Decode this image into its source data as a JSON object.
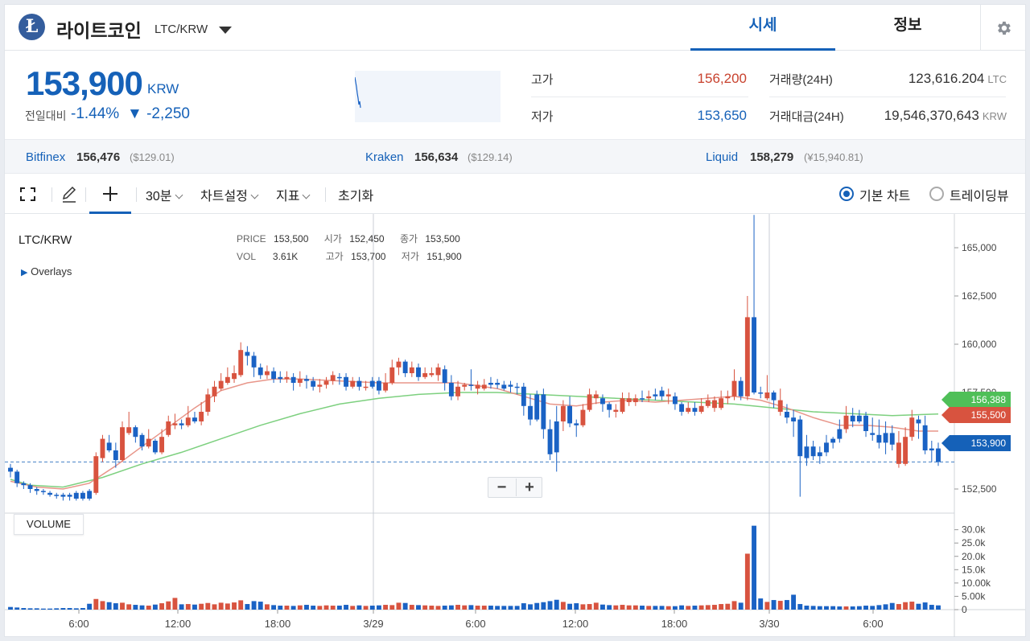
{
  "header": {
    "coin_logo_glyph": "Ł",
    "coin_name": "라이트코인",
    "pair": "LTC/KRW",
    "tabs": [
      {
        "label": "시세",
        "active": true
      },
      {
        "label": "정보",
        "active": false
      }
    ]
  },
  "summary": {
    "price": "153,900",
    "price_unit": "KRW",
    "change_label": "전일대비",
    "change_pct": "-1.44%",
    "change_abs": "▼ -2,250",
    "high_label": "고가",
    "high": "156,200",
    "low_label": "저가",
    "low": "153,650",
    "volume_label": "거래량(24H)",
    "volume": "123,616.204",
    "volume_unit": "LTC",
    "value_label": "거래대금(24H)",
    "value": "19,546,370,643",
    "value_unit": "KRW"
  },
  "exchanges": [
    {
      "name": "Bitfinex",
      "price": "156,476",
      "usd": "($129.01)"
    },
    {
      "name": "Kraken",
      "price": "156,634",
      "usd": "($129.14)"
    },
    {
      "name": "Liquid",
      "price": "158,279",
      "usd": "(¥15,940.81)"
    }
  ],
  "toolbar": {
    "interval": "30분",
    "settings": "차트설정",
    "indicators": "지표",
    "reset": "초기화",
    "basic_chart": "기본 차트",
    "tradingview": "트레이딩뷰"
  },
  "chart": {
    "pair_label": "LTC/KRW",
    "overlays_label": "Overlays",
    "info": {
      "price_key": "PRICE",
      "price": "153,500",
      "open_key": "시가",
      "open": "152,450",
      "close_key": "종가",
      "close": "153,500",
      "vol_key": "VOL",
      "vol": "3.61K",
      "high_key": "고가",
      "high": "153,700",
      "low_key": "저가",
      "low": "151,900"
    },
    "volume_label": "VOLUME",
    "zoom_out": "−",
    "zoom_in": "+",
    "price_axis": [
      "165,000",
      "162,500",
      "160,000",
      "157,500",
      "155,000",
      "152,500"
    ],
    "volume_axis": [
      "30.0k",
      "25.0k",
      "20.0k",
      "15.0k",
      "10.00k",
      "5.00k",
      "0"
    ],
    "time_axis": [
      "6:00",
      "12:00",
      "18:00",
      "3/29",
      "6:00",
      "12:00",
      "18:00",
      "3/30",
      "6:00"
    ],
    "tags": {
      "ma_long": "156,388",
      "ma_short": "155,500",
      "last": "153,900"
    },
    "colors": {
      "up": "#d8533f",
      "down": "#1a62c4",
      "ma_long": "#7dd07f",
      "ma_short": "#e8968a",
      "last": "#1561b8"
    }
  },
  "chart_data": {
    "type": "candlestick",
    "title": "LTC/KRW",
    "series": [
      {
        "name": "LTC/KRW"
      },
      {
        "name": "VOLUME"
      }
    ],
    "ylim": [
      151500,
      166500
    ],
    "candles": [
      [
        153600,
        153400,
        153800,
        153100,
        1.0,
        0
      ],
      [
        153400,
        152800,
        153500,
        152600,
        0.8,
        0
      ],
      [
        152800,
        152700,
        152900,
        152500,
        0.6,
        0
      ],
      [
        152700,
        152500,
        152800,
        152300,
        0.5,
        0
      ],
      [
        152500,
        152400,
        152600,
        152200,
        0.5,
        0
      ],
      [
        152400,
        152400,
        152500,
        152200,
        0.4,
        0
      ],
      [
        152300,
        152200,
        152400,
        152100,
        0.4,
        0
      ],
      [
        152200,
        152200,
        152300,
        152000,
        0.5,
        0
      ],
      [
        152200,
        152100,
        152300,
        151900,
        0.6,
        0
      ],
      [
        152100,
        152200,
        152300,
        151900,
        0.6,
        0
      ],
      [
        152000,
        152300,
        152400,
        151900,
        0.5,
        0
      ],
      [
        152300,
        152000,
        152400,
        151900,
        0.6,
        0
      ],
      [
        152000,
        152400,
        152500,
        151900,
        2.2,
        0
      ],
      [
        152300,
        154200,
        154400,
        152200,
        4.0,
        1
      ],
      [
        154100,
        155100,
        155300,
        153900,
        3.2,
        1
      ],
      [
        154900,
        154500,
        155300,
        154400,
        2.8,
        0
      ],
      [
        154500,
        154000,
        154900,
        153600,
        2.4,
        0
      ],
      [
        154000,
        155700,
        156000,
        153900,
        2.6,
        1
      ],
      [
        155400,
        155700,
        156500,
        155300,
        2.0,
        1
      ],
      [
        155700,
        155200,
        155800,
        154900,
        1.8,
        0
      ],
      [
        155300,
        154700,
        155400,
        154500,
        1.6,
        0
      ],
      [
        154700,
        155100,
        155600,
        154600,
        1.5,
        1
      ],
      [
        155000,
        154400,
        155100,
        154300,
        1.9,
        0
      ],
      [
        154400,
        155200,
        155600,
        154300,
        2.4,
        1
      ],
      [
        155300,
        156000,
        156300,
        155200,
        3.1,
        1
      ],
      [
        155800,
        155900,
        156400,
        155600,
        4.4,
        1
      ],
      [
        155900,
        155800,
        156100,
        155600,
        2.0,
        0
      ],
      [
        155800,
        156200,
        156800,
        155700,
        2.1,
        1
      ],
      [
        156200,
        156000,
        156500,
        155900,
        1.9,
        0
      ],
      [
        156000,
        156500,
        157000,
        155800,
        2.2,
        1
      ],
      [
        156500,
        157400,
        157700,
        156300,
        2.5,
        1
      ],
      [
        157300,
        157800,
        158100,
        157000,
        2.0,
        1
      ],
      [
        157700,
        158100,
        158500,
        157600,
        2.6,
        1
      ],
      [
        158000,
        158300,
        158800,
        157900,
        2.3,
        1
      ],
      [
        158200,
        158500,
        158900,
        158000,
        2.7,
        1
      ],
      [
        158400,
        159700,
        160100,
        158300,
        3.5,
        1
      ],
      [
        159600,
        159400,
        159900,
        158900,
        2.1,
        0
      ],
      [
        159400,
        158800,
        159600,
        158300,
        3.2,
        0
      ],
      [
        158800,
        158400,
        159000,
        158200,
        3.0,
        0
      ],
      [
        158400,
        158600,
        158900,
        158200,
        2.0,
        1
      ],
      [
        158600,
        158200,
        158800,
        158000,
        1.7,
        0
      ],
      [
        158200,
        158300,
        158600,
        158000,
        1.5,
        0
      ],
      [
        158200,
        158300,
        158600,
        158000,
        1.5,
        1
      ],
      [
        158300,
        158000,
        158500,
        157600,
        1.4,
        0
      ],
      [
        158000,
        158200,
        158600,
        157800,
        1.6,
        1
      ],
      [
        158200,
        158100,
        158400,
        157700,
        1.8,
        0
      ],
      [
        158100,
        157800,
        158300,
        157600,
        1.5,
        0
      ],
      [
        157800,
        157900,
        158200,
        157500,
        1.4,
        1
      ],
      [
        157900,
        158100,
        158300,
        157700,
        1.6,
        1
      ],
      [
        158100,
        158400,
        158600,
        157900,
        1.5,
        1
      ],
      [
        158300,
        158300,
        158500,
        157900,
        1.5,
        0
      ],
      [
        158300,
        157800,
        158500,
        157600,
        1.8,
        0
      ],
      [
        157800,
        158100,
        158300,
        157700,
        1.4,
        1
      ],
      [
        158100,
        157800,
        158300,
        157600,
        1.6,
        0
      ],
      [
        157800,
        157800,
        158100,
        157600,
        1.4,
        1
      ],
      [
        157800,
        158100,
        158300,
        157700,
        1.5,
        0
      ],
      [
        158100,
        157600,
        158300,
        157400,
        1.6,
        0
      ],
      [
        157600,
        158000,
        158500,
        157500,
        1.8,
        1
      ],
      [
        158000,
        158800,
        159200,
        157900,
        1.7,
        1
      ],
      [
        158800,
        159100,
        159300,
        158400,
        2.6,
        1
      ],
      [
        159100,
        158500,
        159200,
        158300,
        2.5,
        0
      ],
      [
        158500,
        158800,
        159100,
        158300,
        1.8,
        1
      ],
      [
        158800,
        158300,
        159000,
        158100,
        1.7,
        0
      ],
      [
        158300,
        158500,
        158800,
        158200,
        1.6,
        1
      ],
      [
        158500,
        158400,
        158800,
        158300,
        1.5,
        1
      ],
      [
        158400,
        158800,
        159000,
        158100,
        1.4,
        1
      ],
      [
        158700,
        158000,
        158900,
        157600,
        1.5,
        0
      ],
      [
        158000,
        157300,
        158400,
        157100,
        1.6,
        0
      ],
      [
        157300,
        157800,
        158100,
        157100,
        1.8,
        1
      ],
      [
        157800,
        157900,
        158000,
        157600,
        1.6,
        1
      ],
      [
        157900,
        157900,
        158700,
        157600,
        1.7,
        0
      ],
      [
        157900,
        157700,
        158100,
        157400,
        1.5,
        1
      ],
      [
        157700,
        157900,
        158200,
        157600,
        1.5,
        1
      ],
      [
        157900,
        158000,
        158300,
        157700,
        1.5,
        0
      ],
      [
        157900,
        158000,
        158200,
        157700,
        1.4,
        0
      ],
      [
        157900,
        157700,
        158100,
        157600,
        1.4,
        0
      ],
      [
        157900,
        157800,
        158100,
        157500,
        1.4,
        0
      ],
      [
        157800,
        157800,
        158000,
        157400,
        1.4,
        0
      ],
      [
        157800,
        156800,
        158000,
        156300,
        2.4,
        0
      ],
      [
        156800,
        156100,
        157400,
        155800,
        2.0,
        0
      ],
      [
        156100,
        157400,
        157600,
        156000,
        2.5,
        0
      ],
      [
        157400,
        155600,
        157700,
        155100,
        2.8,
        0
      ],
      [
        155600,
        154300,
        156100,
        154000,
        3.2,
        0
      ],
      [
        154400,
        156000,
        156800,
        153400,
        3.7,
        0
      ],
      [
        156000,
        156800,
        157100,
        155500,
        2.9,
        1
      ],
      [
        156800,
        155900,
        157300,
        155700,
        2.2,
        0
      ],
      [
        155900,
        155800,
        156100,
        155200,
        2.4,
        0
      ],
      [
        155800,
        156600,
        156900,
        155700,
        2.0,
        1
      ],
      [
        156600,
        157400,
        157700,
        156500,
        2.1,
        1
      ],
      [
        157400,
        157200,
        157600,
        156900,
        2.6,
        1
      ],
      [
        157200,
        156900,
        157400,
        156500,
        1.9,
        0
      ],
      [
        156900,
        156600,
        157000,
        156200,
        1.7,
        0
      ],
      [
        156600,
        156500,
        156900,
        156200,
        1.6,
        1
      ],
      [
        156500,
        157200,
        157500,
        156400,
        1.8,
        1
      ],
      [
        157200,
        157000,
        157500,
        156800,
        1.6,
        1
      ],
      [
        157000,
        157200,
        157400,
        156800,
        1.6,
        1
      ],
      [
        157200,
        157200,
        157600,
        157000,
        1.5,
        0
      ],
      [
        157200,
        157300,
        157600,
        157000,
        1.4,
        1
      ],
      [
        157300,
        157400,
        157700,
        157100,
        1.4,
        0
      ],
      [
        157300,
        157600,
        157800,
        157100,
        1.4,
        0
      ],
      [
        157400,
        157300,
        157700,
        156900,
        1.3,
        1
      ],
      [
        157300,
        156900,
        157500,
        156600,
        1.3,
        0
      ],
      [
        156900,
        156500,
        157000,
        156300,
        1.6,
        0
      ],
      [
        156500,
        156700,
        157000,
        156400,
        1.4,
        1
      ],
      [
        156700,
        156500,
        157000,
        156300,
        1.5,
        0
      ],
      [
        156500,
        156800,
        157200,
        156400,
        1.6,
        1
      ],
      [
        156800,
        157100,
        157400,
        156700,
        1.7,
        1
      ],
      [
        157100,
        156700,
        157300,
        156500,
        1.8,
        1
      ],
      [
        156700,
        157200,
        157600,
        156600,
        2.1,
        1
      ],
      [
        157200,
        157300,
        157600,
        156900,
        2.2,
        1
      ],
      [
        157300,
        158100,
        158700,
        157100,
        3.2,
        1
      ],
      [
        158100,
        157300,
        158300,
        157100,
        2.6,
        0
      ],
      [
        157300,
        161400,
        162500,
        157100,
        21.0,
        1
      ],
      [
        161400,
        157500,
        166700,
        157400,
        31.5,
        0
      ],
      [
        157500,
        157500,
        157800,
        157200,
        4.2,
        0
      ],
      [
        157500,
        157200,
        158400,
        157100,
        2.9,
        1
      ],
      [
        157500,
        157100,
        157600,
        156700,
        3.6,
        0
      ],
      [
        157100,
        156500,
        157700,
        156300,
        3.3,
        1
      ],
      [
        156500,
        156200,
        156900,
        155900,
        3.6,
        0
      ],
      [
        156200,
        156000,
        156600,
        155200,
        5.6,
        0
      ],
      [
        156100,
        154200,
        156300,
        152100,
        2.1,
        0
      ],
      [
        154100,
        154700,
        155300,
        153700,
        1.5,
        0
      ],
      [
        154700,
        154200,
        155000,
        154000,
        1.4,
        0
      ],
      [
        154200,
        154400,
        154700,
        153800,
        1.3,
        0
      ],
      [
        154400,
        154900,
        155300,
        154200,
        1.3,
        0
      ],
      [
        154900,
        155100,
        155200,
        154600,
        1.3,
        0
      ],
      [
        155100,
        155600,
        156100,
        154900,
        1.2,
        0
      ],
      [
        155600,
        156300,
        156800,
        155400,
        1.2,
        1
      ],
      [
        156300,
        156000,
        156700,
        155700,
        1.2,
        0
      ],
      [
        156000,
        156300,
        156600,
        155900,
        1.3,
        0
      ],
      [
        156300,
        155500,
        156500,
        155200,
        1.5,
        0
      ],
      [
        155400,
        155300,
        156200,
        155000,
        1.4,
        0
      ],
      [
        155300,
        154900,
        156100,
        154600,
        1.7,
        0
      ],
      [
        154900,
        155400,
        156000,
        154300,
        2.0,
        0
      ],
      [
        155400,
        154800,
        155800,
        154500,
        2.5,
        0
      ],
      [
        154900,
        153800,
        155500,
        153600,
        2.1,
        1
      ],
      [
        153800,
        155200,
        155700,
        153700,
        2.8,
        1
      ],
      [
        155200,
        156200,
        156600,
        155000,
        3.0,
        1
      ],
      [
        156100,
        155900,
        156300,
        155100,
        2.2,
        0
      ],
      [
        155800,
        154500,
        156300,
        154300,
        2.7,
        0
      ],
      [
        154500,
        154600,
        155000,
        153900,
        1.8,
        0
      ],
      [
        154600,
        153900,
        154900,
        153700,
        1.6,
        0
      ]
    ],
    "ma_long": [
      [
        0,
        153000
      ],
      [
        3,
        152700
      ],
      [
        8,
        152600
      ],
      [
        14,
        153100
      ],
      [
        20,
        153800
      ],
      [
        26,
        154400
      ],
      [
        32,
        155100
      ],
      [
        38,
        155800
      ],
      [
        44,
        156400
      ],
      [
        50,
        156900
      ],
      [
        56,
        157200
      ],
      [
        62,
        157400
      ],
      [
        68,
        157500
      ],
      [
        74,
        157500
      ],
      [
        80,
        157400
      ],
      [
        86,
        157300
      ],
      [
        92,
        157200
      ],
      [
        98,
        157100
      ],
      [
        104,
        157000
      ],
      [
        110,
        156900
      ],
      [
        116,
        156700
      ],
      [
        122,
        156500
      ],
      [
        128,
        156400
      ],
      [
        134,
        156300
      ],
      [
        141,
        156388
      ]
    ],
    "ma_short": [
      [
        0,
        152900
      ],
      [
        4,
        152600
      ],
      [
        8,
        152500
      ],
      [
        12,
        152800
      ],
      [
        16,
        153700
      ],
      [
        20,
        154700
      ],
      [
        24,
        155700
      ],
      [
        28,
        156700
      ],
      [
        32,
        157600
      ],
      [
        36,
        158000
      ],
      [
        40,
        158200
      ],
      [
        44,
        158200
      ],
      [
        50,
        158100
      ],
      [
        56,
        158000
      ],
      [
        62,
        158000
      ],
      [
        68,
        158000
      ],
      [
        74,
        157700
      ],
      [
        78,
        157300
      ],
      [
        82,
        156900
      ],
      [
        86,
        156800
      ],
      [
        90,
        157000
      ],
      [
        94,
        157100
      ],
      [
        98,
        157000
      ],
      [
        102,
        157100
      ],
      [
        106,
        157200
      ],
      [
        110,
        157300
      ],
      [
        114,
        157100
      ],
      [
        118,
        156700
      ],
      [
        122,
        156200
      ],
      [
        126,
        155800
      ],
      [
        130,
        155800
      ],
      [
        134,
        155700
      ],
      [
        138,
        155500
      ],
      [
        141,
        155500
      ]
    ],
    "current_price": 153900
  }
}
